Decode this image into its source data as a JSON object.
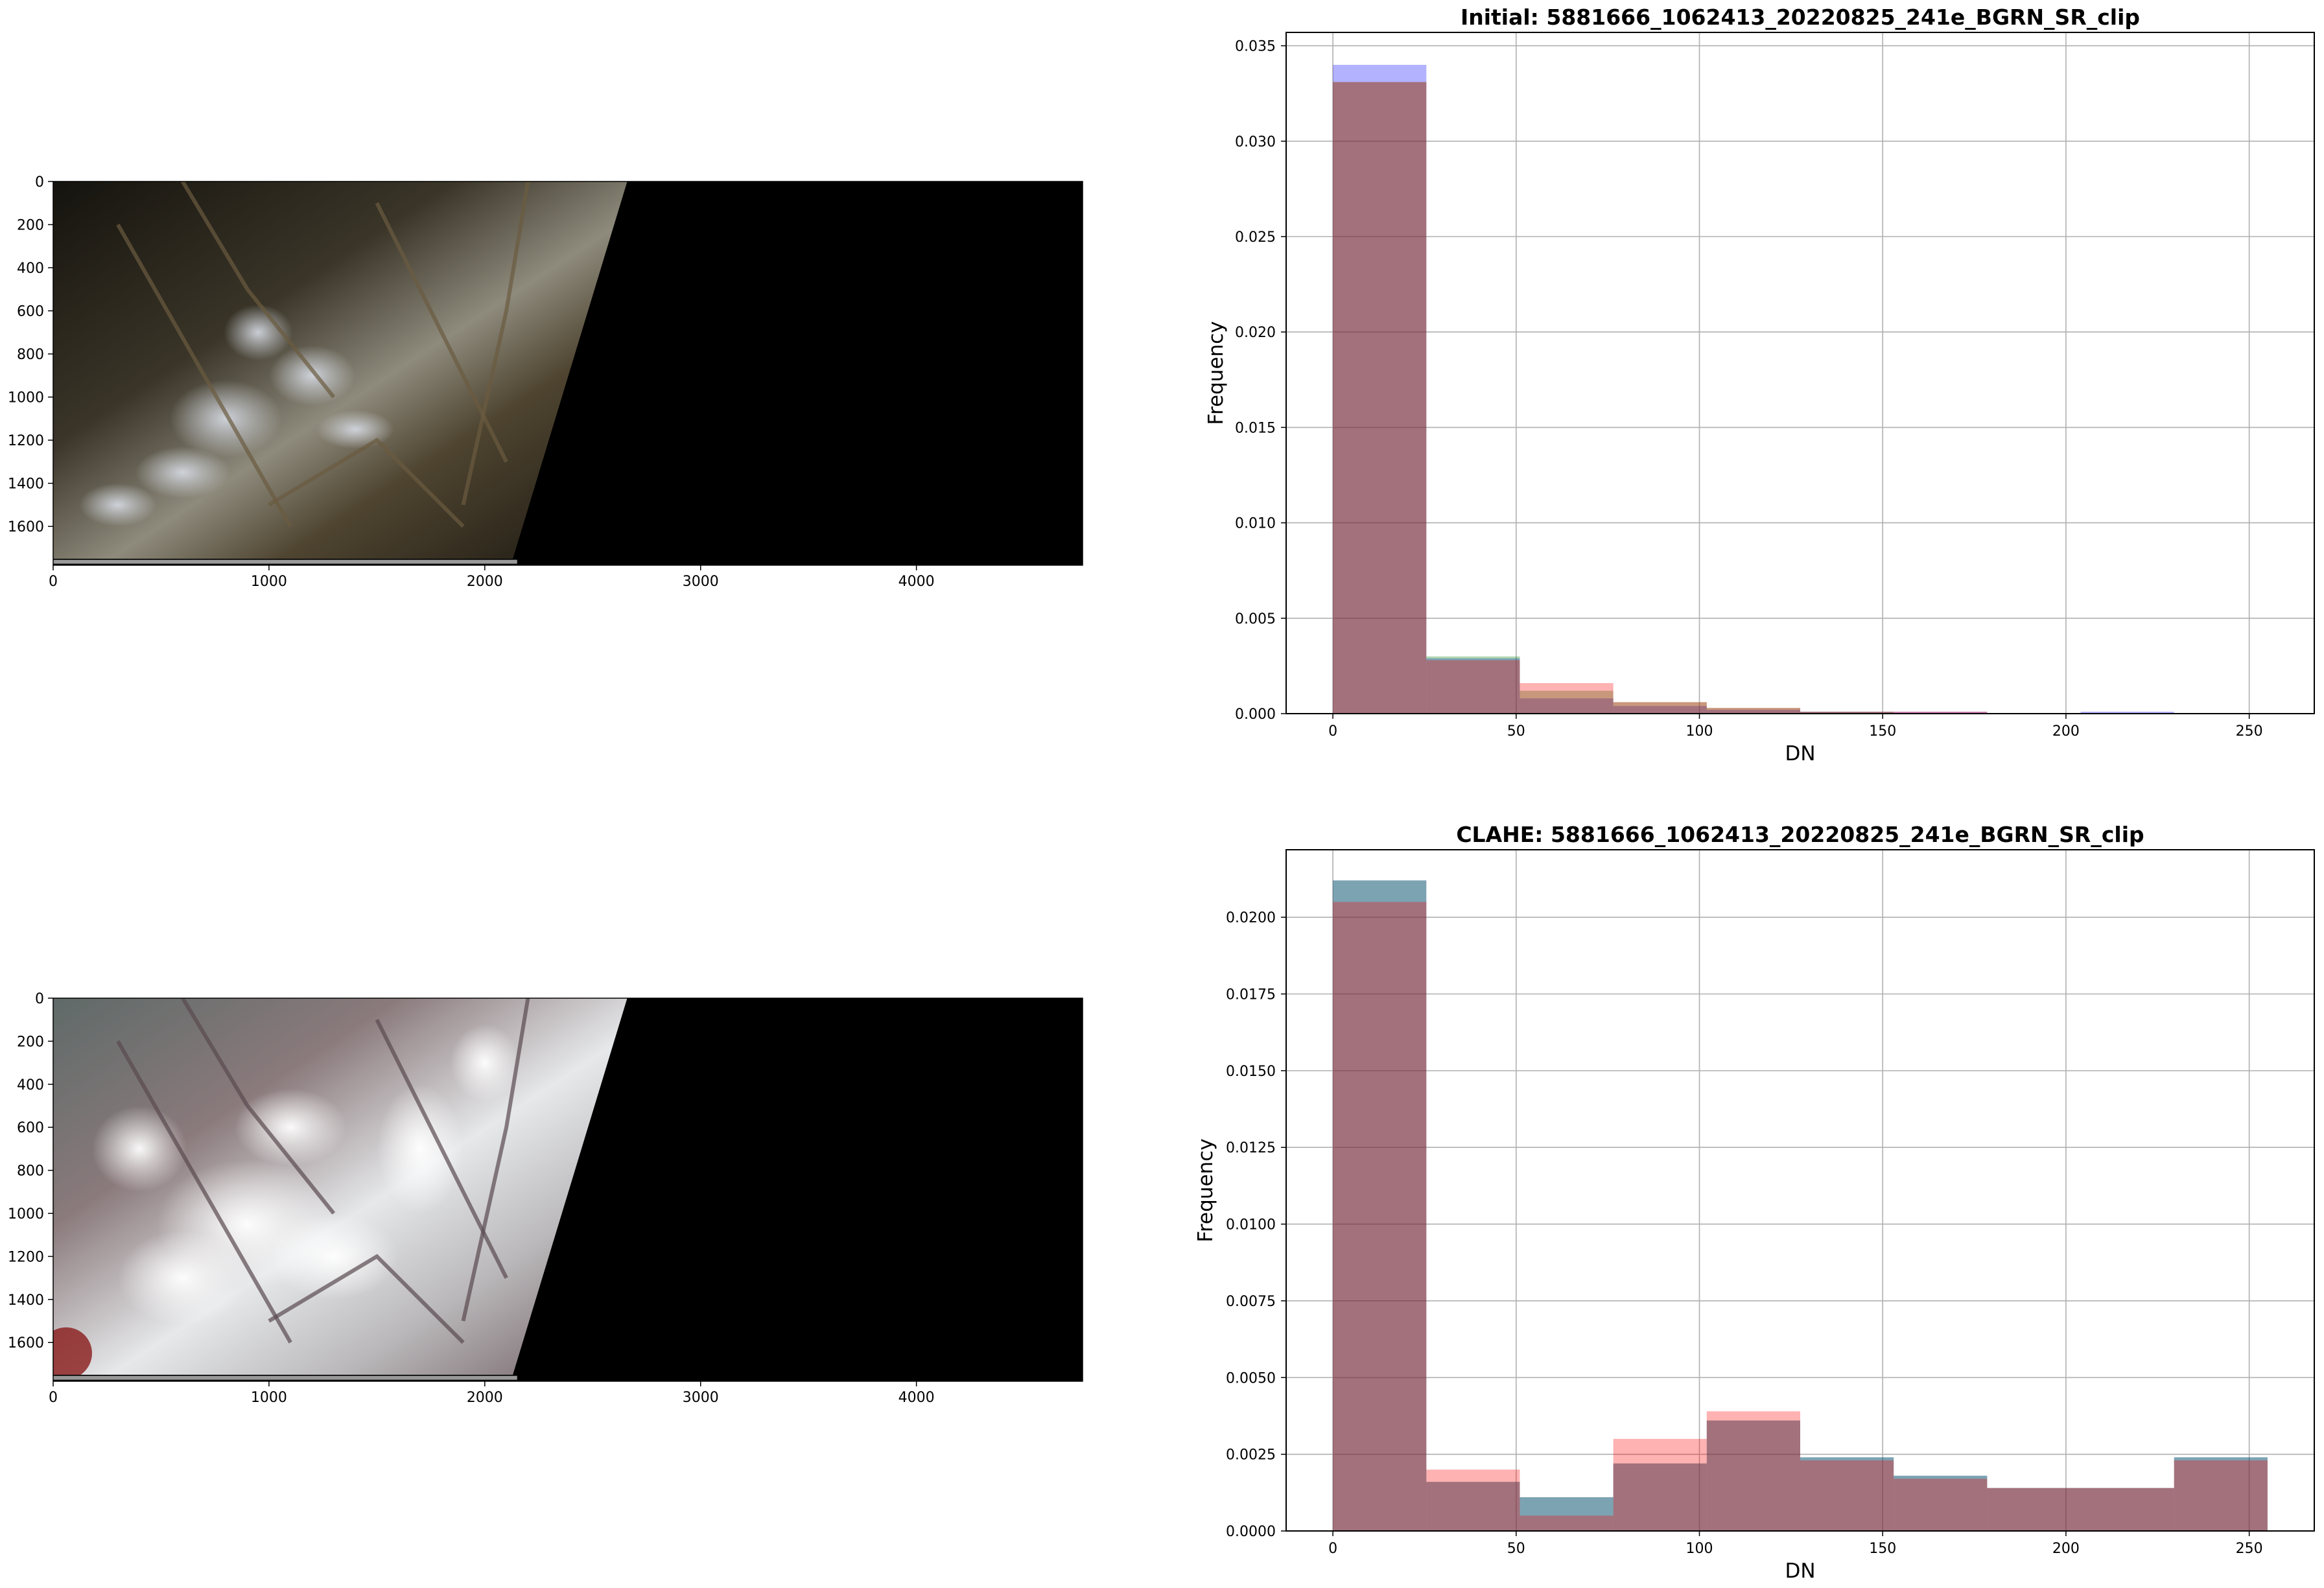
{
  "chart_data": [
    {
      "type": "image",
      "title": "",
      "xticks": [
        0,
        1000,
        2000,
        3000,
        4000
      ],
      "yticks": [
        0,
        200,
        400,
        600,
        800,
        1000,
        1200,
        1400,
        1600
      ],
      "xlim": [
        0,
        4770
      ],
      "ylim": [
        1780,
        0
      ],
      "image_style": "natural-color"
    },
    {
      "type": "histogram",
      "title": "Initial: 5881666_1062413_20220825_241e_BGRN_SR_clip",
      "xlabel": "DN",
      "ylabel": "Frequency",
      "xlim": [
        -12.75,
        267.75
      ],
      "ylim": [
        0,
        0.0357
      ],
      "xticks": [
        0,
        50,
        100,
        150,
        200,
        250
      ],
      "yticks": [
        0.0,
        0.005,
        0.01,
        0.015,
        0.02,
        0.025,
        0.03,
        0.035
      ],
      "ytick_labels": [
        "0.000",
        "0.005",
        "0.010",
        "0.015",
        "0.020",
        "0.025",
        "0.030",
        "0.035"
      ],
      "grid": true,
      "bin_edges": [
        0,
        25.5,
        51,
        76.5,
        102,
        127.5,
        153,
        178.5,
        204,
        229.5,
        255
      ],
      "series": [
        {
          "color": "#0000ff",
          "values": [
            0.034,
            0.0029,
            0.0008,
            0.0004,
            0.0002,
            0.0001,
            0.0001,
            0.0,
            0.0001,
            0.0
          ]
        },
        {
          "color": "#008000",
          "values": [
            0.0331,
            0.003,
            0.0012,
            0.0006,
            0.0003,
            0.0001,
            0.0,
            0.0,
            0.0,
            0.0
          ]
        },
        {
          "color": "#ff0000",
          "values": [
            0.0331,
            0.0028,
            0.0016,
            0.0006,
            0.0003,
            0.0001,
            0.0001,
            0.0,
            0.0,
            0.0
          ]
        }
      ]
    },
    {
      "type": "image",
      "title": "",
      "xticks": [
        0,
        1000,
        2000,
        3000,
        4000
      ],
      "yticks": [
        0,
        200,
        400,
        600,
        800,
        1000,
        1200,
        1400,
        1600
      ],
      "xlim": [
        0,
        4770
      ],
      "ylim": [
        1780,
        0
      ],
      "image_style": "clahe-enhanced"
    },
    {
      "type": "histogram",
      "title": "CLAHE: 5881666_1062413_20220825_241e_BGRN_SR_clip",
      "xlabel": "DN",
      "ylabel": "Frequency",
      "xlim": [
        -12.75,
        267.75
      ],
      "ylim": [
        0,
        0.0222
      ],
      "xticks": [
        0,
        50,
        100,
        150,
        200,
        250
      ],
      "yticks": [
        0.0,
        0.0025,
        0.005,
        0.0075,
        0.01,
        0.0125,
        0.015,
        0.0175,
        0.02
      ],
      "ytick_labels": [
        "0.0000",
        "0.0025",
        "0.0050",
        "0.0075",
        "0.0100",
        "0.0125",
        "0.0150",
        "0.0175",
        "0.0200"
      ],
      "grid": true,
      "bin_edges": [
        0,
        25.5,
        51,
        76.5,
        102,
        127.5,
        153,
        178.5,
        204,
        229.5,
        255
      ],
      "series": [
        {
          "color": "#0000ff",
          "values": [
            0.0212,
            0.0016,
            0.0011,
            0.0022,
            0.0036,
            0.0024,
            0.0018,
            0.0014,
            0.0014,
            0.0024
          ]
        },
        {
          "color": "#008000",
          "values": [
            0.0212,
            0.0016,
            0.0011,
            0.0022,
            0.0036,
            0.0024,
            0.0018,
            0.0014,
            0.0014,
            0.0024
          ]
        },
        {
          "color": "#ff0000",
          "values": [
            0.0205,
            0.002,
            0.0005,
            0.003,
            0.0039,
            0.0023,
            0.0017,
            0.0014,
            0.0014,
            0.0023
          ]
        }
      ]
    }
  ]
}
